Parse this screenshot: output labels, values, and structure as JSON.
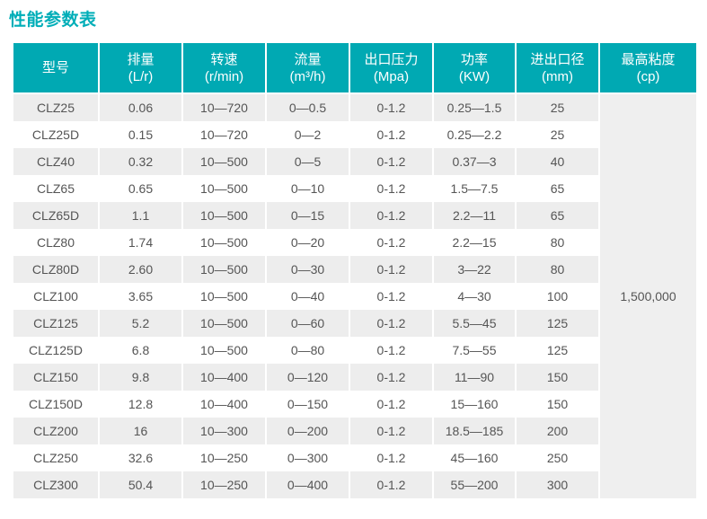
{
  "page_title": "性能参数表",
  "colors": {
    "title": "#00AEB8",
    "header_bg": "#00A9B3",
    "header_text": "#FFFFFF",
    "row_alt_bg": "#EDEDED",
    "row_bg": "#FFFFFF",
    "body_text": "#555555",
    "merged_cell_bg": "#EFEFEF"
  },
  "table": {
    "columns": [
      {
        "line1": "型号",
        "line2": ""
      },
      {
        "line1": "排量",
        "line2": "(L/r)"
      },
      {
        "line1": "转速",
        "line2": "(r/min)"
      },
      {
        "line1": "流量",
        "line2": "(m³/h)"
      },
      {
        "line1": "出口压力",
        "line2": "(Mpa)"
      },
      {
        "line1": "功率",
        "line2": "(KW)"
      },
      {
        "line1": "进出口径",
        "line2": "(mm)"
      },
      {
        "line1": "最高粘度",
        "line2": "(cp)"
      }
    ],
    "rows": [
      [
        "CLZ25",
        "0.06",
        "10—720",
        "0—0.5",
        "0-1.2",
        "0.25—1.5",
        "25"
      ],
      [
        "CLZ25D",
        "0.15",
        "10—720",
        "0—2",
        "0-1.2",
        "0.25—2.2",
        "25"
      ],
      [
        "CLZ40",
        "0.32",
        "10—500",
        "0—5",
        "0-1.2",
        "0.37—3",
        "40"
      ],
      [
        "CLZ65",
        "0.65",
        "10—500",
        "0—10",
        "0-1.2",
        "1.5—7.5",
        "65"
      ],
      [
        "CLZ65D",
        "1.1",
        "10—500",
        "0—15",
        "0-1.2",
        "2.2—11",
        "65"
      ],
      [
        "CLZ80",
        "1.74",
        "10—500",
        "0—20",
        "0-1.2",
        "2.2—15",
        "80"
      ],
      [
        "CLZ80D",
        "2.60",
        "10—500",
        "0—30",
        "0-1.2",
        "3—22",
        "80"
      ],
      [
        "CLZ100",
        "3.65",
        "10—500",
        "0—40",
        "0-1.2",
        "4—30",
        "100"
      ],
      [
        "CLZ125",
        "5.2",
        "10—500",
        "0—60",
        "0-1.2",
        "5.5—45",
        "125"
      ],
      [
        "CLZ125D",
        "6.8",
        "10—500",
        "0—80",
        "0-1.2",
        "7.5—55",
        "125"
      ],
      [
        "CLZ150",
        "9.8",
        "10—400",
        "0—120",
        "0-1.2",
        "11—90",
        "150"
      ],
      [
        "CLZ150D",
        "12.8",
        "10—400",
        "0—150",
        "0-1.2",
        "15—160",
        "150"
      ],
      [
        "CLZ200",
        "16",
        "10—300",
        "0—200",
        "0-1.2",
        "18.5—185",
        "200"
      ],
      [
        "CLZ250",
        "32.6",
        "10—250",
        "0—300",
        "0-1.2",
        "45—160",
        "250"
      ],
      [
        "CLZ300",
        "50.4",
        "10—250",
        "0—400",
        "0-1.2",
        "55—200",
        "300"
      ]
    ],
    "merged_last_column_value": "1,500,000"
  }
}
